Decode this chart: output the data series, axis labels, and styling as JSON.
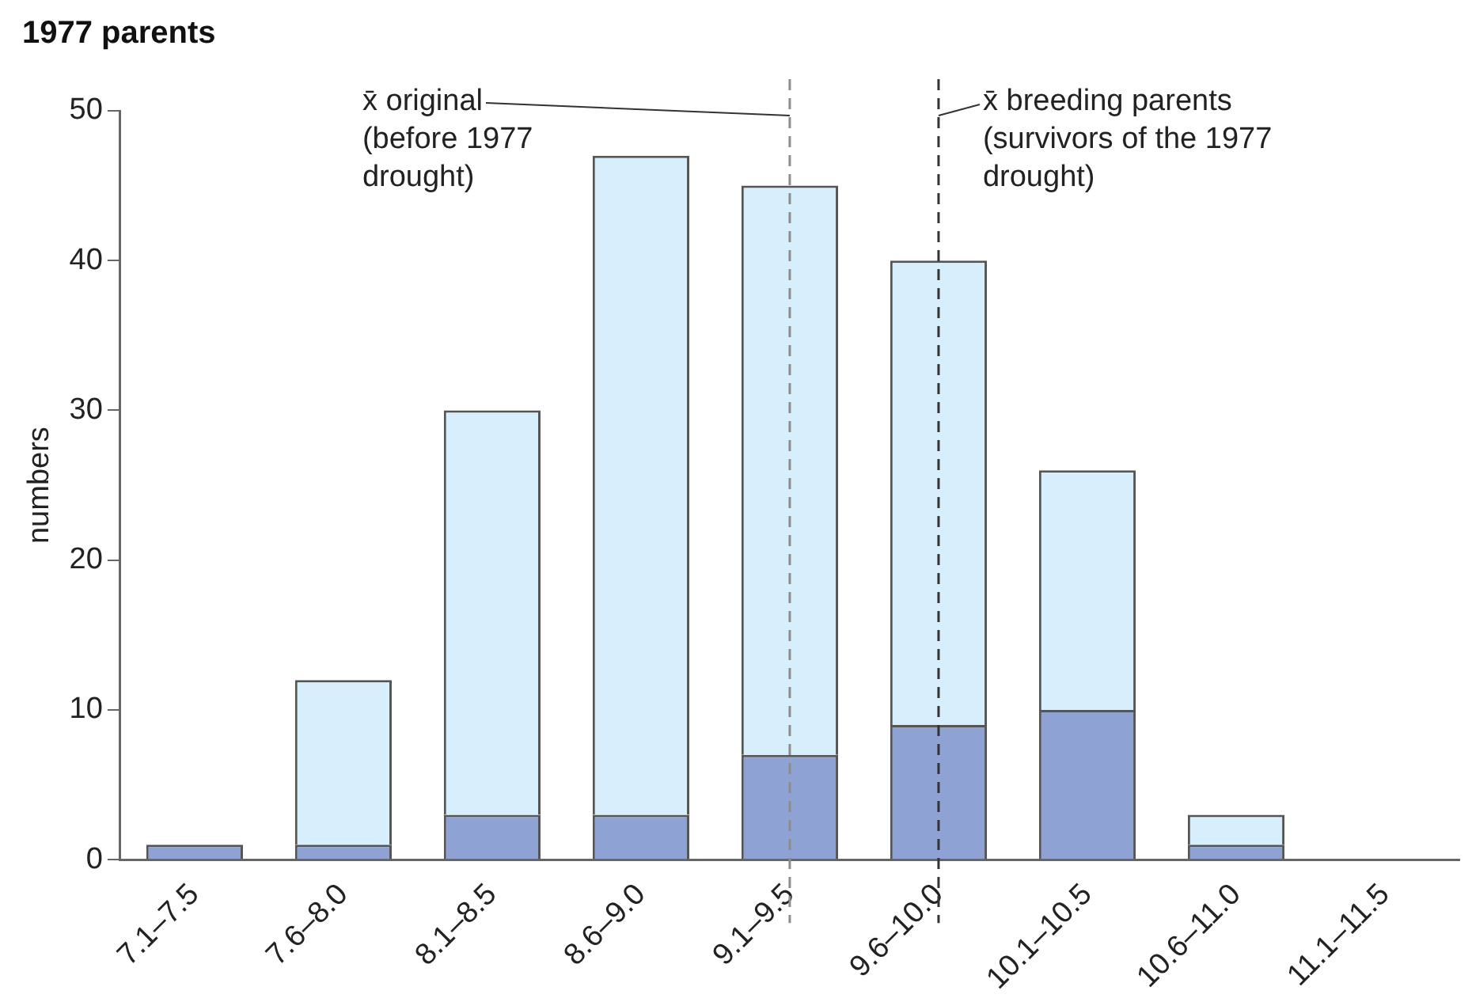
{
  "chart_data": {
    "type": "bar",
    "title": "1977 parents",
    "ylabel": "numbers",
    "categories": [
      "7.1–7.5",
      "7.6–8.0",
      "8.1–8.5",
      "8.6–9.0",
      "9.1–9.5",
      "9.6–10.0",
      "10.1–10.5",
      "10.6–11.0",
      "11.1–11.5"
    ],
    "stacked": true,
    "series": [
      {
        "color": "#8fa2d4",
        "values": [
          1,
          1,
          3,
          3,
          7,
          9,
          10,
          1,
          0
        ]
      },
      {
        "color": "#d7effc",
        "values": [
          0,
          11,
          27,
          44,
          38,
          31,
          16,
          2,
          0
        ]
      }
    ],
    "ylim": [
      0,
      50
    ],
    "yticks": [
      0,
      10,
      20,
      30,
      40,
      50
    ],
    "grid": false,
    "legend": false,
    "ref_lines": [
      {
        "axis": "x",
        "value": "9.1–9.5",
        "label": "x̄ original (before 1977 drought)",
        "color": "#8c8c8c",
        "line_style": "dashed"
      },
      {
        "axis": "x",
        "value": "9.6–10.0",
        "label": "x̄ breeding parents (survivors of the 1977 drought)",
        "color": "#333333",
        "line_style": "dashed"
      }
    ]
  }
}
